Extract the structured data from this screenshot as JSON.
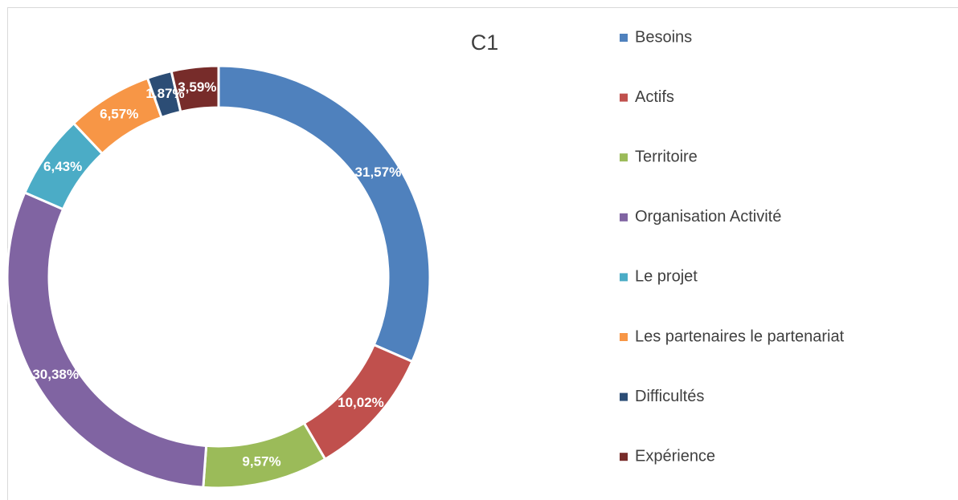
{
  "chart_data": {
    "type": "donut",
    "title": "C1",
    "categories": [
      "Besoins",
      "Actifs",
      "Territoire",
      "Organisation Activité",
      "Le projet",
      "Les partenaires le partenariat",
      "Difficultés",
      "Expérience"
    ],
    "values": [
      31.57,
      10.02,
      9.57,
      30.38,
      6.43,
      6.57,
      1.87,
      3.59
    ],
    "value_labels": [
      "31,57%",
      "10,02%",
      "9,57%",
      "30,38%",
      "6,43%",
      "6,57%",
      "1,87%",
      "3,59%"
    ],
    "colors": [
      "#4f81bd",
      "#c0504d",
      "#9bbb59",
      "#8064a2",
      "#4bacc6",
      "#f79646",
      "#2c4d75",
      "#772c2a"
    ],
    "legend": "right"
  }
}
